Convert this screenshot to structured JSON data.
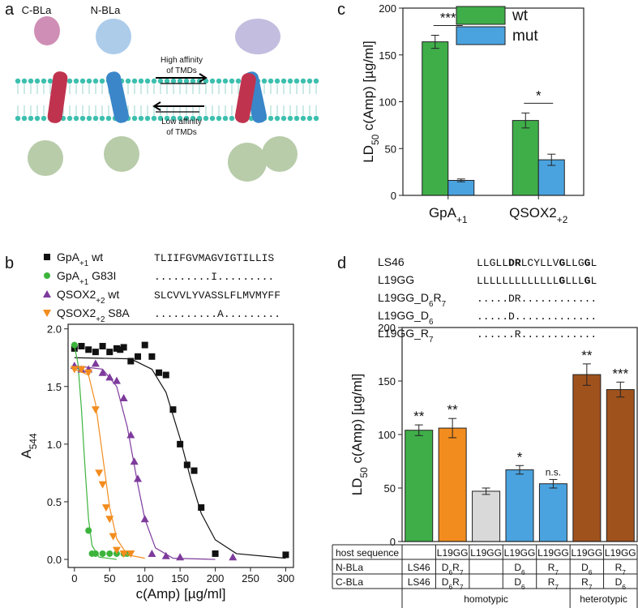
{
  "panel_labels": [
    "a",
    "b",
    "c",
    "d"
  ],
  "diagram": {
    "protein_labels": [
      "C-BLa",
      "N-BLa"
    ],
    "high_affinity": [
      "High affinity",
      "of TMDs"
    ],
    "low_affinity": [
      "Low affinity",
      "of TMDs"
    ]
  },
  "chart_data": [
    {
      "type": "bar",
      "y_label": [
        "LD",
        "50",
        " c(Amp) [µg/ml]"
      ],
      "categories": [
        [
          "GpA",
          "+1"
        ],
        [
          "QSOX2",
          "+2"
        ]
      ],
      "series": [
        {
          "name": "wt",
          "color": "#3fae49",
          "values": [
            164,
            80
          ],
          "errors": [
            7,
            8
          ]
        },
        {
          "name": "mut",
          "color": "#4aa3df",
          "values": [
            16,
            38
          ],
          "errors": [
            1.5,
            6
          ]
        }
      ],
      "significance": [
        "***",
        "*"
      ],
      "ylim": [
        0,
        200
      ],
      "yticks": [
        0,
        50,
        100,
        150,
        200
      ]
    },
    {
      "type": "scatter",
      "x_label": "c(Amp) [µg/ml]",
      "y_label": [
        "A",
        "544"
      ],
      "xlim": [
        -9,
        311
      ],
      "xticks": [
        0,
        50,
        100,
        150,
        200,
        250,
        300
      ],
      "ylim": [
        -0.07,
        2.04
      ],
      "yticks": [
        {
          "value": 0,
          "label": "0.0"
        },
        {
          "value": 0.5,
          "label": "0.5"
        },
        {
          "value": 1,
          "label": "1.0"
        },
        {
          "value": 1.5,
          "label": "1.5"
        },
        {
          "value": 2,
          "label": "2.0"
        }
      ],
      "series": [
        {
          "name": [
            "GpA",
            "+1",
            " wt"
          ],
          "color": "#111111",
          "marker": "square",
          "sequence": "TLIIFGVMAGVIGTILLIS",
          "x": [
            0,
            10,
            20,
            30,
            40,
            50,
            60,
            65,
            70,
            80,
            90,
            100,
            110,
            120,
            130,
            140,
            150,
            160,
            170,
            180,
            200,
            300
          ],
          "values": [
            1.83,
            1.85,
            1.82,
            1.8,
            1.85,
            1.8,
            1.83,
            1.82,
            1.84,
            1.72,
            1.76,
            1.86,
            1.76,
            1.62,
            1.6,
            1.3,
            1.0,
            0.82,
            0.77,
            0.45,
            0.05,
            0.04
          ],
          "fit_x": [
            0,
            80,
            110,
            130,
            150,
            165,
            180,
            200,
            230,
            300
          ],
          "fit_y": [
            1.75,
            1.74,
            1.65,
            1.45,
            1.05,
            0.7,
            0.4,
            0.17,
            0.05,
            0.01
          ]
        },
        {
          "name": [
            "GpA",
            "+1",
            " G83I"
          ],
          "color": "#3cb43c",
          "marker": "circle",
          "sequence": ".........I.........",
          "x": [
            0,
            20,
            25,
            30,
            40,
            50,
            60,
            70,
            75
          ],
          "values": [
            1.86,
            0.25,
            0.05,
            0.05,
            0.05,
            0.05,
            0.05,
            0.05,
            0.05
          ],
          "fit_x": [
            0,
            5,
            10,
            15,
            20,
            25,
            35,
            60
          ],
          "fit_y": [
            1.85,
            1.7,
            1.3,
            0.8,
            0.35,
            0.12,
            0.02,
            0
          ]
        },
        {
          "name": [
            "QSOX2",
            "+2",
            " wt"
          ],
          "color": "#7e3b9c",
          "marker": "triangle-up",
          "sequence": "SLCVVLYVASSLFLMVMYFF",
          "x": [
            0,
            10,
            20,
            30,
            40,
            50,
            60,
            70,
            80,
            85,
            90,
            100,
            110,
            130,
            150,
            225
          ],
          "values": [
            1.68,
            1.65,
            1.65,
            1.7,
            1.62,
            1.58,
            1.55,
            1.4,
            1.08,
            0.85,
            0.7,
            0.35,
            0.05,
            0.03,
            0.02,
            0.02
          ],
          "fit_x": [
            0,
            40,
            60,
            75,
            90,
            100,
            115,
            140,
            200
          ],
          "fit_y": [
            1.68,
            1.65,
            1.5,
            1.15,
            0.65,
            0.35,
            0.1,
            0.01,
            0
          ]
        },
        {
          "name": [
            "QSOX2",
            "+2",
            " S8A"
          ],
          "color": "#f28c1e",
          "marker": "triangle-down",
          "sequence": "..........A.........",
          "x": [
            0,
            10,
            20,
            30,
            35,
            40,
            45,
            50,
            55,
            60,
            70,
            80
          ],
          "values": [
            1.65,
            1.65,
            1.62,
            1.3,
            0.75,
            0.65,
            0.45,
            0.35,
            0.2,
            0.08,
            0.05,
            0.05
          ],
          "fit_x": [
            0,
            20,
            30,
            40,
            50,
            60,
            75,
            100
          ],
          "fit_y": [
            1.65,
            1.6,
            1.35,
            0.9,
            0.45,
            0.18,
            0.04,
            0.01
          ]
        }
      ]
    },
    {
      "type": "bar",
      "y_label": [
        "LD",
        "50",
        " c(Amp) [µg/ml]"
      ],
      "values": [
        104,
        106,
        47,
        67,
        54,
        156,
        142
      ],
      "errors": [
        5,
        9,
        3,
        4,
        4,
        10,
        7
      ],
      "colors": [
        "#3fae49",
        "#f28c1e",
        "#d9d9d9",
        "#4aa3df",
        "#4aa3df",
        "#a0521d",
        "#a0521d"
      ],
      "significance": [
        "**",
        "**",
        null,
        "*",
        "n.s.",
        "**",
        "***"
      ],
      "ylim": [
        0,
        200
      ],
      "yticks": [
        0,
        50,
        100,
        150,
        200
      ],
      "sequences": [
        {
          "name": [
            "LS46"
          ],
          "sequence": [
            "LLGLL",
            "DR",
            "LCYLLV",
            "G",
            "LLG",
            "G",
            "L"
          ]
        },
        {
          "name": [
            "L19GG"
          ],
          "sequence": [
            "LLLLLLLLLLLLL",
            "G",
            "LLL",
            "G",
            "L"
          ]
        },
        {
          "name": [
            "L19GG_D",
            "6",
            "R",
            "7"
          ],
          "sequence": [
            ".....DR............"
          ]
        },
        {
          "name": [
            "L19GG_D",
            "6"
          ],
          "sequence": [
            ".....D............."
          ]
        },
        {
          "name": [
            "L19GG_R",
            "7"
          ],
          "sequence": [
            "......R............"
          ]
        }
      ],
      "table": {
        "row_headers": [
          "host sequence",
          "N-BLa",
          "C-BLa"
        ],
        "columns": [
          [
            null,
            [
              "LS46"
            ],
            [
              "LS46"
            ]
          ],
          [
            [
              "L19GG"
            ],
            [
              "D",
              "6",
              "R",
              "7"
            ],
            [
              "D",
              "6",
              "R",
              "7"
            ]
          ],
          [
            [
              "L19GG"
            ],
            null,
            null
          ],
          [
            [
              "L19GG"
            ],
            [
              "D",
              "6"
            ],
            [
              "D",
              "6"
            ]
          ],
          [
            [
              "L19GG"
            ],
            [
              "R",
              "7"
            ],
            [
              "R",
              "7"
            ]
          ],
          [
            [
              "L19GG"
            ],
            [
              "D",
              "6"
            ],
            [
              "R",
              "7"
            ]
          ],
          [
            [
              "L19GG"
            ],
            [
              "R",
              "7"
            ],
            [
              "D",
              "6"
            ]
          ]
        ],
        "groups": [
          "homotypic",
          "heterotypic"
        ]
      }
    }
  ]
}
